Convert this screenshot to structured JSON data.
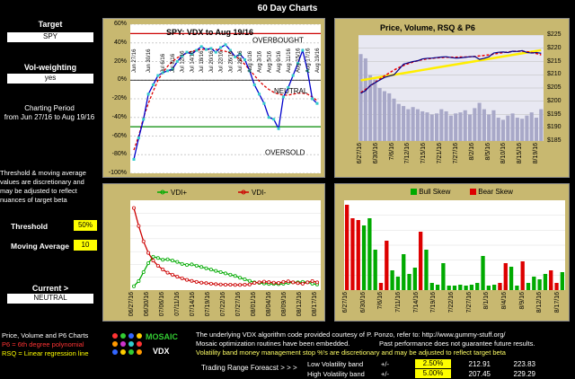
{
  "title": "60 Day Charts",
  "sidebar": {
    "target_label": "Target",
    "target_value": "SPY",
    "volweight_label": "Vol-weighting",
    "volweight_value": "yes",
    "period_label": "Charting Period",
    "period_value": "from Jun 27/16 to Aug 19/16",
    "note_lines": [
      "Threshold & moving average",
      "values are discretionary and",
      "may be adjusted to reflect",
      "nuances of target beta"
    ],
    "threshold_label": "Threshold",
    "threshold_value": "50%",
    "ma_label": "Moving Average",
    "ma_value": "10",
    "current_label": "Current >",
    "current_value": "NEUTRAL",
    "legend_title": "Price, Volume and P6 Charts",
    "legend_p6": "P6 = 6th degree polynomial",
    "legend_rsq": "RSQ = Linear regression line"
  },
  "logo": {
    "text": "MOSAIC",
    "sub": "VDX"
  },
  "footer": {
    "line1": "The underlying VDX algorithm code provided courtesy of P. Ponzo, refer to:  http://www.gummy-stuff.org/",
    "line2a": "Mosaic optimization routines have been embedded.",
    "line2b": "Past performance does not guarantee future results.",
    "line3": "Volatility band money management stop %'s are discretionary and may be adjusted to reflect target beta",
    "forecast_label": "Trading Range Foreacst > > >",
    "low_label": "Low Volatility band",
    "high_label": "High Volatility band",
    "pm": "+/-",
    "low_pct": "2.50%",
    "high_pct": "5.00%",
    "low_lo": "212.91",
    "low_hi": "223.83",
    "high_lo": "207.45",
    "high_hi": "229.29"
  },
  "colors": {
    "panel_bg": "#c8b870",
    "overbought": "#cc0000",
    "oversold": "#008800",
    "bull": "#00aa00",
    "bear": "#dd0000"
  },
  "chart_data": [
    {
      "type": "line",
      "title": "SPY:  VDX to Aug 19/16",
      "ylim": [
        -100,
        60
      ],
      "yticks": [
        "60%",
        "40%",
        "20%",
        "0%",
        "-20%",
        "-40%",
        "-60%",
        "-80%",
        "-100%"
      ],
      "annotations": [
        "OVERBOUGHT",
        "NEUTRAL",
        "OVERSOLD"
      ],
      "levels": {
        "overbought": 50,
        "oversold": -50
      },
      "x": [
        "Jun 27/16",
        "Jun 28/16",
        "Jun 29/16",
        "Jun 30/16",
        "Jul 1/16",
        "Jul 5/16",
        "Jul 6/16",
        "Jul 7/16",
        "Jul 8/16",
        "Jul 11/16",
        "Jul 12/16",
        "Jul 13/16",
        "Jul 14/16",
        "Jul 15/16",
        "Jul 18/16",
        "Jul 19/16",
        "Jul 20/16",
        "Jul 21/16",
        "Jul 22/16",
        "Jul 25/16",
        "Jul 26/16",
        "Jul 27/16",
        "Jul 28/16",
        "Jul 29/16",
        "Aug 1/16",
        "Aug 2/16",
        "Aug 3/16",
        "Aug 4/16",
        "Aug 5/16",
        "Aug 8/16",
        "Aug 9/16",
        "Aug 10/16",
        "Aug 11/16",
        "Aug 12/16",
        "Aug 15/16",
        "Aug 16/16",
        "Aug 17/16",
        "Aug 18/16",
        "Aug 19/16"
      ],
      "xticks": [
        "Jun 27/16",
        "Jun 30/16",
        "Jul 6/16",
        "Jul 8/16",
        "Jul 12/16",
        "Jul 14/16",
        "Jul 18/16",
        "Jul 20/16",
        "Jul 22/16",
        "Jul 26/16",
        "Jul 28/16",
        "Aug 1/16",
        "Aug 3/16",
        "Aug 5/16",
        "Aug 9/16",
        "Aug 11/16",
        "Aug 15/16",
        "Aug 17/16",
        "Aug 19/16"
      ],
      "series": [
        {
          "values": [
            -85,
            -62,
            -42,
            -15,
            -5,
            5,
            8,
            10,
            12,
            20,
            26,
            30,
            28,
            32,
            36,
            33,
            34,
            30,
            35,
            38,
            32,
            25,
            28,
            22,
            10,
            -5,
            -15,
            -25,
            -40,
            -42,
            -52,
            -18,
            -8,
            5,
            18,
            32,
            10,
            -20,
            -25
          ]
        },
        {
          "values": [
            -75,
            -60,
            -40,
            -25,
            -12,
            0,
            8,
            15,
            20,
            24,
            27,
            29,
            31,
            32,
            33,
            33,
            33,
            33,
            32,
            31,
            29,
            26,
            22,
            17,
            11,
            5,
            -1,
            -6,
            -10,
            -13,
            -15,
            -16,
            -16,
            -15,
            -14,
            -14,
            -15,
            -18,
            -22
          ]
        }
      ]
    },
    {
      "type": "line",
      "title": "Price,  Volume, RSQ & P6",
      "yticks": [
        "$225",
        "$220",
        "$215",
        "$210",
        "$205",
        "$200",
        "$195",
        "$190",
        "$185"
      ],
      "ylim": [
        185,
        225
      ],
      "xticks": [
        "6/27/16",
        "6/30/16",
        "7/6/16",
        "7/12/16",
        "7/15/16",
        "7/21/16",
        "7/27/16",
        "8/2/16",
        "8/5/16",
        "8/10/16",
        "8/15/16",
        "8/19/16"
      ],
      "series": [
        {
          "name": "Price",
          "values": [
            203,
            204,
            206,
            207,
            208,
            209,
            209.5,
            210,
            212,
            214,
            214.5,
            215,
            215.3,
            216,
            216.2,
            216.3,
            216.5,
            216.7,
            216.8,
            216.5,
            216.3,
            216.4,
            216.6,
            216.8,
            216.9,
            215.8,
            216.2,
            216.8,
            218.2,
            218.5,
            218.6,
            218.4,
            218.9,
            218.8,
            219.1,
            218.4,
            218.2,
            218.4,
            218.1
          ]
        },
        {
          "name": "RSQ",
          "values": [
            207.9,
            208.2,
            208.5,
            208.8,
            209.1,
            209.4,
            209.7,
            210.0,
            210.3,
            210.6,
            210.9,
            211.2,
            211.5,
            211.8,
            212.1,
            212.4,
            212.7,
            213.0,
            213.3,
            213.6,
            213.9,
            214.2,
            214.5,
            214.8,
            215.1,
            215.4,
            215.7,
            216.0,
            216.3,
            216.6,
            216.9,
            217.2,
            217.5,
            217.8,
            218.1,
            218.4,
            218.7,
            219.0,
            219.3
          ]
        },
        {
          "name": "P6",
          "values": [
            203.3,
            204.5,
            205.8,
            207.1,
            208.4,
            209.6,
            210.7,
            211.8,
            212.7,
            213.5,
            214.2,
            214.8,
            215.3,
            215.7,
            216.0,
            216.2,
            216.4,
            216.5,
            216.6,
            216.6,
            216.6,
            216.7,
            216.7,
            216.8,
            216.9,
            217.1,
            217.3,
            217.5,
            217.8,
            218.1,
            218.4,
            218.6,
            218.8,
            218.9,
            218.9,
            218.7,
            218.4,
            218.0,
            217.5
          ]
        },
        {
          "name": "Volume",
          "values": [
            0.82,
            0.78,
            0.62,
            0.58,
            0.5,
            0.47,
            0.45,
            0.4,
            0.35,
            0.33,
            0.3,
            0.32,
            0.3,
            0.28,
            0.27,
            0.25,
            0.26,
            0.3,
            0.28,
            0.24,
            0.26,
            0.27,
            0.29,
            0.25,
            0.31,
            0.36,
            0.3,
            0.25,
            0.29,
            0.22,
            0.2,
            0.24,
            0.26,
            0.22,
            0.21,
            0.24,
            0.27,
            0.22,
            0.3
          ]
        }
      ]
    },
    {
      "type": "line",
      "xticks": [
        "06/27/16",
        "06/30/16",
        "07/06/16",
        "07/11/16",
        "07/14/16",
        "07/19/16",
        "07/22/16",
        "07/27/16",
        "08/01/16",
        "08/04/16",
        "08/09/16",
        "08/12/16",
        "08/17/16"
      ],
      "series": [
        {
          "name": "VDI+",
          "values": [
            0.15,
            0.35,
            0.7,
            1.05,
            1.3,
            1.25,
            1.18,
            1.2,
            1.15,
            1.1,
            1.02,
            0.98,
            1.0,
            0.95,
            0.9,
            0.85,
            0.8,
            0.75,
            0.7,
            0.65,
            0.6,
            0.55,
            0.48,
            0.42,
            0.36,
            0.3,
            0.28,
            0.26,
            0.24,
            0.24,
            0.23,
            0.25,
            0.28,
            0.3,
            0.3,
            0.32,
            0.3,
            0.25,
            0.22
          ]
        },
        {
          "name": "VDI-",
          "values": [
            3.2,
            2.5,
            1.9,
            1.45,
            1.15,
            0.95,
            0.8,
            0.68,
            0.6,
            0.52,
            0.46,
            0.4,
            0.36,
            0.32,
            0.29,
            0.27,
            0.25,
            0.23,
            0.22,
            0.21,
            0.21,
            0.2,
            0.2,
            0.21,
            0.22,
            0.28,
            0.3,
            0.33,
            0.31,
            0.29,
            0.28,
            0.32,
            0.34,
            0.3,
            0.27,
            0.25,
            0.3,
            0.35,
            0.3
          ]
        }
      ]
    },
    {
      "type": "bar",
      "xticks": [
        "6/27/16",
        "6/30/16",
        "7/6/16",
        "7/11/16",
        "7/14/16",
        "7/19/16",
        "7/22/16",
        "7/27/16",
        "8/1/16",
        "8/4/16",
        "8/9/16",
        "8/12/16",
        "8/17/16"
      ],
      "series": [
        {
          "name": "Bull Skew",
          "values": [
            0,
            0,
            0,
            0.72,
            0.8,
            0.45,
            0,
            0,
            0.22,
            0.15,
            0.4,
            0.18,
            0.25,
            0,
            0.45,
            0.08,
            0.06,
            0.3,
            0.05,
            0.05,
            0.06,
            0.05,
            0.06,
            0.08,
            0.38,
            0.05,
            0.06,
            0.05,
            0.06,
            0.26,
            0.05,
            0,
            0.08,
            0.15,
            0.12,
            0.18,
            0.05,
            0,
            0.2
          ]
        },
        {
          "name": "Bear Skew",
          "values": [
            0.95,
            0.8,
            0.78,
            0,
            0,
            0,
            0.08,
            0.55,
            0,
            0,
            0,
            0,
            0,
            0.65,
            0,
            0,
            0,
            0,
            0,
            0,
            0,
            0,
            0,
            0,
            0,
            0,
            0,
            0.08,
            0.3,
            0,
            0,
            0.32,
            0,
            0,
            0,
            0,
            0.22,
            0.08,
            0
          ]
        }
      ]
    }
  ]
}
